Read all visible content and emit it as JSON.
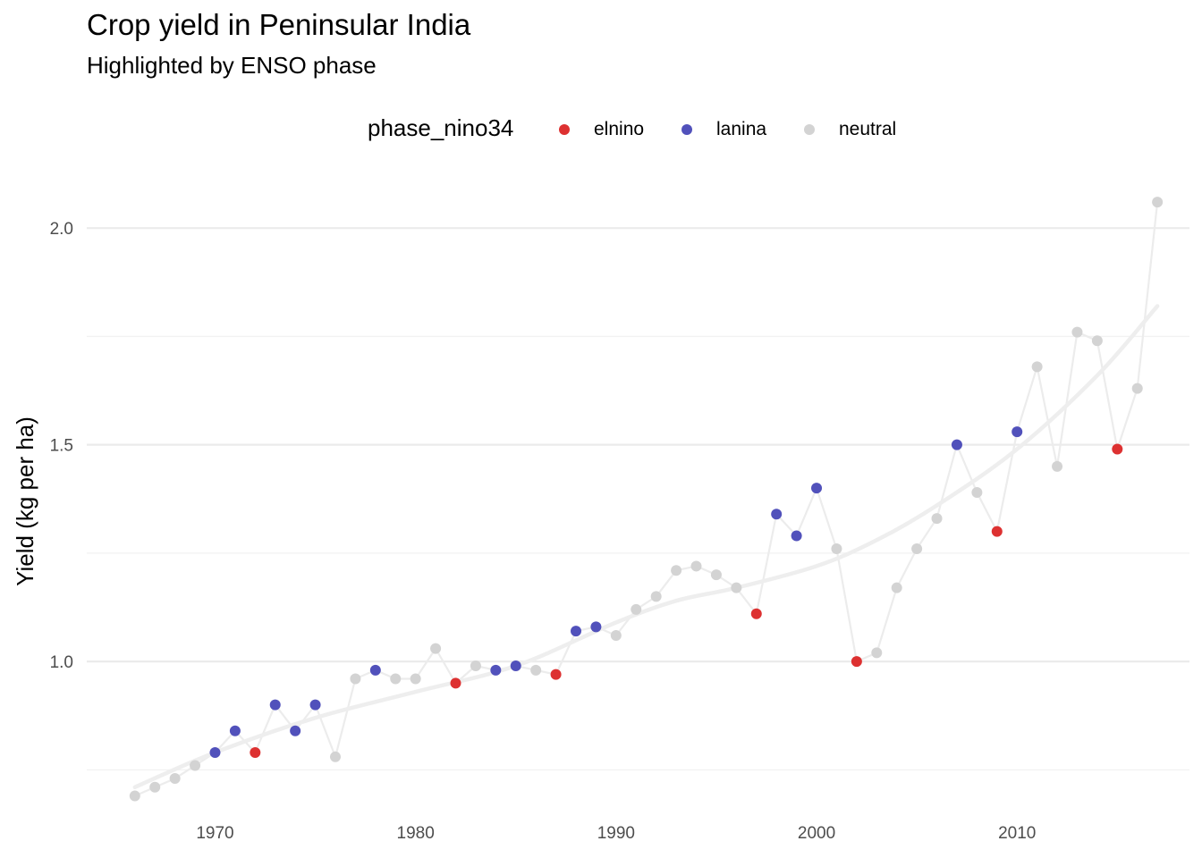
{
  "chart_data": {
    "type": "scatter",
    "title": "Crop yield in Peninsular India",
    "subtitle": "Highlighted by ENSO phase",
    "xlabel": "",
    "ylabel": "Yield (kg per ha)",
    "xlim": [
      1963.6,
      2018.6
    ],
    "ylim": [
      0.66,
      2.12
    ],
    "x_ticks": [
      1970,
      1980,
      1990,
      2000,
      2010
    ],
    "y_ticks": [
      1.0,
      1.5,
      2.0
    ],
    "grid": true,
    "legend": {
      "title": "phase_nino34",
      "position": "top",
      "entries": [
        {
          "label": "elnino",
          "color": "#dd3131"
        },
        {
          "label": "lanina",
          "color": "#5151bb"
        },
        {
          "label": "neutral",
          "color": "#d3d3d3"
        }
      ]
    },
    "colors": {
      "elnino": "#dd3131",
      "lanina": "#5151bb",
      "neutral": "#d3d3d3",
      "line": "#ececec",
      "trend": "#eeeeee",
      "grid": "#ebebeb"
    },
    "points": [
      {
        "x": 1966,
        "y": 0.69,
        "phase": "neutral"
      },
      {
        "x": 1967,
        "y": 0.71,
        "phase": "neutral"
      },
      {
        "x": 1968,
        "y": 0.73,
        "phase": "neutral"
      },
      {
        "x": 1969,
        "y": 0.76,
        "phase": "neutral"
      },
      {
        "x": 1970,
        "y": 0.79,
        "phase": "lanina"
      },
      {
        "x": 1971,
        "y": 0.84,
        "phase": "lanina"
      },
      {
        "x": 1972,
        "y": 0.79,
        "phase": "elnino"
      },
      {
        "x": 1973,
        "y": 0.9,
        "phase": "lanina"
      },
      {
        "x": 1974,
        "y": 0.84,
        "phase": "lanina"
      },
      {
        "x": 1975,
        "y": 0.9,
        "phase": "lanina"
      },
      {
        "x": 1976,
        "y": 0.78,
        "phase": "neutral"
      },
      {
        "x": 1977,
        "y": 0.96,
        "phase": "neutral"
      },
      {
        "x": 1978,
        "y": 0.98,
        "phase": "lanina"
      },
      {
        "x": 1979,
        "y": 0.96,
        "phase": "neutral"
      },
      {
        "x": 1980,
        "y": 0.96,
        "phase": "neutral"
      },
      {
        "x": 1981,
        "y": 1.03,
        "phase": "neutral"
      },
      {
        "x": 1982,
        "y": 0.95,
        "phase": "elnino"
      },
      {
        "x": 1983,
        "y": 0.99,
        "phase": "neutral"
      },
      {
        "x": 1984,
        "y": 0.98,
        "phase": "lanina"
      },
      {
        "x": 1985,
        "y": 0.99,
        "phase": "lanina"
      },
      {
        "x": 1986,
        "y": 0.98,
        "phase": "neutral"
      },
      {
        "x": 1987,
        "y": 0.97,
        "phase": "elnino"
      },
      {
        "x": 1988,
        "y": 1.07,
        "phase": "lanina"
      },
      {
        "x": 1989,
        "y": 1.08,
        "phase": "lanina"
      },
      {
        "x": 1990,
        "y": 1.06,
        "phase": "neutral"
      },
      {
        "x": 1991,
        "y": 1.12,
        "phase": "neutral"
      },
      {
        "x": 1992,
        "y": 1.15,
        "phase": "neutral"
      },
      {
        "x": 1993,
        "y": 1.21,
        "phase": "neutral"
      },
      {
        "x": 1994,
        "y": 1.22,
        "phase": "neutral"
      },
      {
        "x": 1995,
        "y": 1.2,
        "phase": "neutral"
      },
      {
        "x": 1996,
        "y": 1.17,
        "phase": "neutral"
      },
      {
        "x": 1997,
        "y": 1.11,
        "phase": "elnino"
      },
      {
        "x": 1998,
        "y": 1.34,
        "phase": "lanina"
      },
      {
        "x": 1999,
        "y": 1.29,
        "phase": "lanina"
      },
      {
        "x": 2000,
        "y": 1.4,
        "phase": "lanina"
      },
      {
        "x": 2001,
        "y": 1.26,
        "phase": "neutral"
      },
      {
        "x": 2002,
        "y": 1.0,
        "phase": "elnino"
      },
      {
        "x": 2003,
        "y": 1.02,
        "phase": "neutral"
      },
      {
        "x": 2004,
        "y": 1.17,
        "phase": "neutral"
      },
      {
        "x": 2005,
        "y": 1.26,
        "phase": "neutral"
      },
      {
        "x": 2006,
        "y": 1.33,
        "phase": "neutral"
      },
      {
        "x": 2007,
        "y": 1.5,
        "phase": "lanina"
      },
      {
        "x": 2008,
        "y": 1.39,
        "phase": "neutral"
      },
      {
        "x": 2009,
        "y": 1.3,
        "phase": "elnino"
      },
      {
        "x": 2010,
        "y": 1.53,
        "phase": "lanina"
      },
      {
        "x": 2011,
        "y": 1.68,
        "phase": "neutral"
      },
      {
        "x": 2012,
        "y": 1.45,
        "phase": "neutral"
      },
      {
        "x": 2013,
        "y": 1.76,
        "phase": "neutral"
      },
      {
        "x": 2014,
        "y": 1.74,
        "phase": "neutral"
      },
      {
        "x": 2015,
        "y": 1.49,
        "phase": "elnino"
      },
      {
        "x": 2016,
        "y": 1.63,
        "phase": "neutral"
      },
      {
        "x": 2017,
        "y": 2.06,
        "phase": "neutral"
      }
    ],
    "trend": [
      {
        "x": 1966,
        "y": 0.71
      },
      {
        "x": 1970,
        "y": 0.79
      },
      {
        "x": 1975,
        "y": 0.87
      },
      {
        "x": 1980,
        "y": 0.93
      },
      {
        "x": 1985,
        "y": 0.99
      },
      {
        "x": 1990,
        "y": 1.09
      },
      {
        "x": 1993,
        "y": 1.14
      },
      {
        "x": 1996,
        "y": 1.17
      },
      {
        "x": 2000,
        "y": 1.22
      },
      {
        "x": 2003,
        "y": 1.28
      },
      {
        "x": 2006,
        "y": 1.36
      },
      {
        "x": 2010,
        "y": 1.49
      },
      {
        "x": 2014,
        "y": 1.66
      },
      {
        "x": 2017,
        "y": 1.82
      }
    ]
  }
}
